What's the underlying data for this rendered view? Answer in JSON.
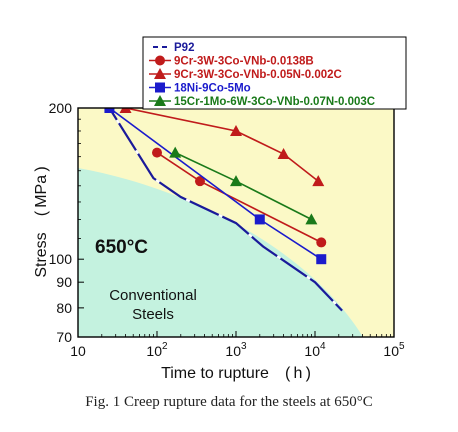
{
  "chart_data": {
    "type": "line",
    "xlabel": "Time to rupture　( h )",
    "ylabel": "Stress　( MPa )",
    "x_scale": "log",
    "y_scale": "log",
    "xlim": [
      10,
      100000
    ],
    "ylim": [
      70,
      200
    ],
    "x_ticks": [
      {
        "value": 10,
        "base": "10",
        "exp": ""
      },
      {
        "value": 100,
        "base": "10",
        "exp": "2"
      },
      {
        "value": 1000,
        "base": "10",
        "exp": "3"
      },
      {
        "value": 10000,
        "base": "10",
        "exp": "4"
      },
      {
        "value": 100000,
        "base": "10",
        "exp": "5"
      }
    ],
    "y_ticks": [
      {
        "value": 70,
        "label": "70"
      },
      {
        "value": 80,
        "label": "80"
      },
      {
        "value": 90,
        "label": "90"
      },
      {
        "value": 100,
        "label": "100"
      },
      {
        "value": 200,
        "label": "200"
      }
    ],
    "background": {
      "upper_color": "#fbf9c6",
      "lower_color": "#c4f2df"
    },
    "annotations": [
      {
        "text": "650°C",
        "weight": "bold"
      },
      {
        "text": "Conventional",
        "weight": "normal"
      },
      {
        "text": "Steels",
        "weight": "normal"
      }
    ],
    "legend_position": "top-right",
    "series": [
      {
        "name": "P92",
        "color": "#1a1a9a",
        "marker": "none",
        "dashed": true,
        "x": [
          25,
          90,
          200,
          1000,
          2200,
          5000,
          10000,
          22000
        ],
        "y": [
          200,
          145,
          133,
          118,
          106,
          97,
          90,
          79
        ]
      },
      {
        "name": "9Cr-3W-3Co-VNb-0.0138B",
        "color": "#c01b1b",
        "marker": "circle",
        "dashed": false,
        "x": [
          100,
          350,
          12000
        ],
        "y": [
          163,
          143,
          108
        ]
      },
      {
        "name": "9Cr-3W-3Co-VNb-0.05N-0.002C",
        "color": "#c01b1b",
        "marker": "triangle",
        "dashed": false,
        "x": [
          40,
          1000,
          4000,
          11000
        ],
        "y": [
          200,
          180,
          162,
          143
        ]
      },
      {
        "name": "18Ni-9Co-5Mo",
        "color": "#1b1bcc",
        "marker": "square",
        "dashed": false,
        "x": [
          25,
          2000,
          12000
        ],
        "y": [
          200,
          120,
          100
        ]
      },
      {
        "name": "15Cr-1Mo-6W-3Co-VNb-0.07N-0.003C",
        "color": "#1a7a1a",
        "marker": "triangle",
        "dashed": false,
        "x": [
          170,
          1000,
          9000
        ],
        "y": [
          163,
          143,
          120
        ]
      }
    ]
  },
  "figure": {
    "caption": "Fig. 1  Creep rupture data for the steels at 650°C"
  }
}
